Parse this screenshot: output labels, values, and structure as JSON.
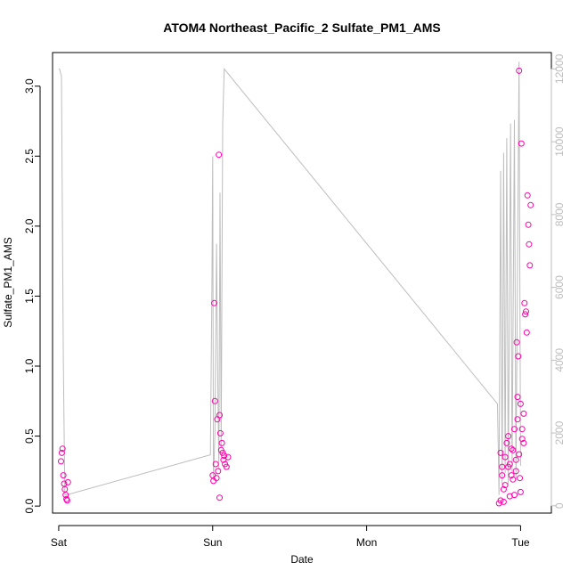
{
  "chart_data": {
    "type": "scatter",
    "title": "ATOM4 Northeast_Pacific_2 Sulfate_PM1_AMS",
    "xlabel": "Date",
    "ylabel": "Sulfate_PM1_AMS",
    "x_tick_labels": [
      "Sat",
      "Sun",
      "Mon",
      "Tue"
    ],
    "x_range": [
      "Sat 00:00",
      "Tue 06:00"
    ],
    "ylim": [
      -0.05,
      3.24
    ],
    "y_ticks": [
      0.0,
      0.5,
      1.0,
      1.5,
      2.0,
      2.5,
      3.0
    ],
    "y_tick_labels": [
      "0.0",
      "0.5",
      "1.0",
      "1.5",
      "2.0",
      "2.5",
      "3.0"
    ],
    "y2_ticks": [
      0,
      2000,
      4000,
      6000,
      8000,
      10000,
      12000
    ],
    "y2_tick_labels": [
      "0",
      "2000",
      "4000",
      "6000",
      "8000",
      "10000",
      "12000"
    ],
    "y2lim": [
      -200,
      12450
    ],
    "grid": false,
    "colors": {
      "points": "#ff00aa",
      "altitude_line": "#bdbdbd",
      "axes": "#000000",
      "right_axis": "#bdbdbd"
    },
    "altitude_line": [
      [
        0.0,
        12000
      ],
      [
        0.005,
        12000
      ],
      [
        0.018,
        11800
      ],
      [
        0.03,
        4000
      ],
      [
        0.04,
        300
      ],
      [
        0.05,
        300
      ],
      [
        0.985,
        1400
      ],
      [
        0.995,
        6000
      ],
      [
        1.0,
        9600
      ],
      [
        1.005,
        700
      ],
      [
        1.015,
        2000
      ],
      [
        1.025,
        7200
      ],
      [
        1.032,
        3800
      ],
      [
        1.04,
        1000
      ],
      [
        1.048,
        8600
      ],
      [
        1.055,
        1600
      ],
      [
        1.065,
        10500
      ],
      [
        1.075,
        12000
      ],
      [
        2.85,
        2800
      ],
      [
        2.86,
        300
      ],
      [
        2.87,
        9200
      ],
      [
        2.88,
        600
      ],
      [
        2.89,
        9700
      ],
      [
        2.9,
        900
      ],
      [
        2.91,
        10100
      ],
      [
        2.92,
        600
      ],
      [
        2.935,
        10500
      ],
      [
        2.945,
        900
      ],
      [
        2.96,
        10600
      ],
      [
        2.97,
        700
      ],
      [
        2.99,
        12200
      ],
      [
        3.0,
        1100
      ]
    ],
    "points": [
      [
        0.015,
        0.32
      ],
      [
        0.02,
        0.38
      ],
      [
        0.025,
        0.41
      ],
      [
        0.03,
        0.22
      ],
      [
        0.035,
        0.16
      ],
      [
        0.04,
        0.12
      ],
      [
        0.045,
        0.08
      ],
      [
        0.05,
        0.05
      ],
      [
        0.055,
        0.04
      ],
      [
        0.06,
        0.17
      ],
      [
        1.01,
        1.45
      ],
      [
        1.015,
        0.75
      ],
      [
        1.02,
        0.3
      ],
      [
        1.03,
        0.62
      ],
      [
        1.04,
        2.51
      ],
      [
        1.045,
        0.65
      ],
      [
        1.05,
        0.52
      ],
      [
        1.055,
        0.4
      ],
      [
        1.06,
        0.45
      ],
      [
        1.065,
        0.38
      ],
      [
        1.07,
        0.33
      ],
      [
        1.075,
        0.36
      ],
      [
        1.08,
        0.3
      ],
      [
        1.09,
        0.28
      ],
      [
        1.1,
        0.35
      ],
      [
        1.0,
        0.22
      ],
      [
        1.005,
        0.18
      ],
      [
        1.025,
        0.2
      ],
      [
        1.035,
        0.25
      ],
      [
        1.045,
        0.06
      ],
      [
        2.86,
        0.02
      ],
      [
        2.87,
        0.04
      ],
      [
        2.88,
        0.28
      ],
      [
        2.89,
        0.12
      ],
      [
        2.9,
        0.35
      ],
      [
        2.91,
        0.45
      ],
      [
        2.92,
        0.5
      ],
      [
        2.93,
        0.3
      ],
      [
        2.94,
        0.22
      ],
      [
        2.95,
        0.4
      ],
      [
        2.96,
        0.08
      ],
      [
        2.97,
        0.33
      ],
      [
        2.975,
        1.17
      ],
      [
        2.98,
        0.78
      ],
      [
        2.985,
        1.07
      ],
      [
        2.99,
        3.11
      ],
      [
        2.995,
        0.2
      ],
      [
        3.0,
        0.1
      ],
      [
        3.005,
        2.59
      ],
      [
        3.01,
        0.55
      ],
      [
        3.02,
        0.45
      ],
      [
        3.025,
        1.45
      ],
      [
        3.03,
        1.37
      ],
      [
        3.035,
        1.39
      ],
      [
        3.04,
        1.24
      ],
      [
        3.045,
        2.22
      ],
      [
        3.05,
        2.01
      ],
      [
        3.055,
        1.87
      ],
      [
        3.06,
        1.72
      ],
      [
        3.065,
        2.15
      ],
      [
        2.87,
        0.38
      ],
      [
        2.88,
        0.22
      ],
      [
        2.9,
        0.15
      ],
      [
        2.92,
        0.28
      ],
      [
        2.94,
        0.41
      ],
      [
        2.96,
        0.55
      ],
      [
        2.98,
        0.62
      ],
      [
        3.0,
        0.73
      ],
      [
        3.02,
        0.66
      ],
      [
        2.93,
        0.07
      ],
      [
        2.89,
        0.03
      ],
      [
        2.95,
        0.19
      ],
      [
        2.97,
        0.25
      ],
      [
        2.99,
        0.37
      ],
      [
        3.01,
        0.48
      ]
    ]
  }
}
